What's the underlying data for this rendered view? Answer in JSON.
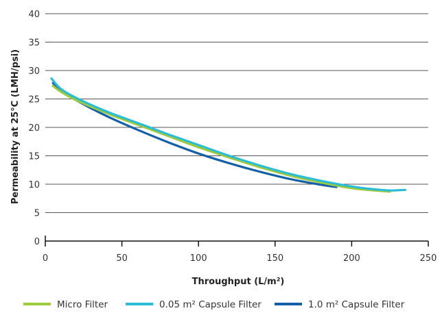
{
  "chart_data": {
    "type": "line",
    "title": "",
    "xlabel": "Throughput (L/m²)",
    "ylabel": "Permeability at 25°C (LMH/psi)",
    "xlim": [
      0,
      250
    ],
    "ylim": [
      0,
      40
    ],
    "x_ticks": [
      0,
      50,
      100,
      150,
      200,
      250
    ],
    "y_ticks": [
      0,
      5,
      10,
      15,
      20,
      25,
      30,
      35,
      40
    ],
    "grid": "horizontal",
    "legend_position": "bottom",
    "series": [
      {
        "name": "Micro Filter",
        "color": "#9ccb3b",
        "x": [
          5,
          10,
          20,
          40,
          60,
          80,
          100,
          120,
          140,
          160,
          180,
          200,
          215,
          225
        ],
        "y": [
          27.3,
          26.3,
          24.8,
          22.5,
          20.5,
          18.5,
          16.5,
          14.7,
          13.0,
          11.5,
          10.3,
          9.3,
          8.9,
          8.7
        ]
      },
      {
        "name": "0.05 m² Capsule Filter",
        "color": "#2bbcd8",
        "x": [
          4,
          10,
          20,
          40,
          60,
          80,
          100,
          120,
          140,
          160,
          180,
          200,
          215,
          225,
          235
        ],
        "y": [
          28.6,
          26.8,
          25.2,
          22.8,
          20.8,
          18.8,
          16.9,
          15.0,
          13.3,
          11.8,
          10.6,
          9.6,
          9.1,
          8.9,
          9.0
        ]
      },
      {
        "name": "1.0 m² Capsule Filter",
        "color": "#1460a8",
        "x": [
          5,
          10,
          20,
          40,
          60,
          80,
          100,
          120,
          140,
          160,
          180,
          190
        ],
        "y": [
          27.8,
          26.6,
          24.8,
          22.0,
          19.6,
          17.4,
          15.4,
          13.7,
          12.2,
          10.9,
          9.9,
          9.5
        ]
      }
    ]
  }
}
